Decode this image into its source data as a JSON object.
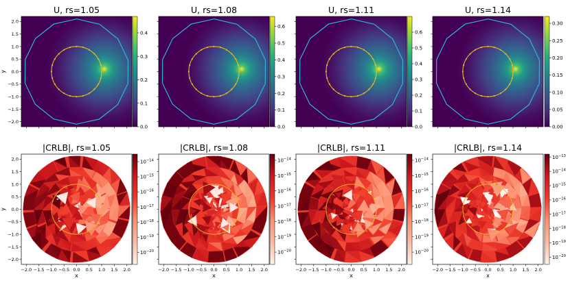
{
  "chart_data": [
    {
      "type": "heatmap",
      "title": "U, rs=1.05",
      "ylabel": "y",
      "xlabel": "",
      "rs": 1.05,
      "colormap": "viridis",
      "xlim": [
        -2.2,
        2.2
      ],
      "ylim": [
        -2.2,
        2.2
      ],
      "clim": [
        0,
        0.47
      ],
      "xticks": [],
      "yticks": [
        "2.0",
        "1.5",
        "1.0",
        "0.5",
        "0.0",
        "−0.5",
        "−1.0",
        "−1.5",
        "−2.0"
      ],
      "colorbar_ticks": [
        "0.4",
        "0.3",
        "0.2",
        "0.1",
        "0.0"
      ],
      "colorbar_tick_values": [
        0.4,
        0.3,
        0.2,
        0.1,
        0.0
      ],
      "peak": {
        "x": 1.1,
        "y": 0.1
      },
      "inner_circle_radius": 1.0,
      "outer_polygon_radius": 2.1
    },
    {
      "type": "heatmap",
      "title": "U, rs=1.08",
      "ylabel": "",
      "xlabel": "",
      "rs": 1.08,
      "colormap": "viridis",
      "xlim": [
        -2.2,
        2.2
      ],
      "ylim": [
        -2.2,
        2.2
      ],
      "clim": [
        0,
        0.66
      ],
      "xticks": [],
      "yticks": [],
      "colorbar_ticks": [
        "0.6",
        "0.5",
        "0.4",
        "0.3",
        "0.2",
        "0.1",
        "0.0"
      ],
      "colorbar_tick_values": [
        0.6,
        0.5,
        0.4,
        0.3,
        0.2,
        0.1,
        0.0
      ],
      "peak": {
        "x": 1.1,
        "y": 0.1
      },
      "inner_circle_radius": 1.0,
      "outer_polygon_radius": 2.1
    },
    {
      "type": "heatmap",
      "title": "U, rs=1.11",
      "ylabel": "",
      "xlabel": "",
      "rs": 1.11,
      "colormap": "viridis",
      "xlim": [
        -2.2,
        2.2
      ],
      "ylim": [
        -2.2,
        2.2
      ],
      "clim": [
        0,
        0.7
      ],
      "xticks": [],
      "yticks": [],
      "colorbar_ticks": [
        "0.6",
        "0.5",
        "0.4",
        "0.3",
        "0.2",
        "0.1",
        "0.0"
      ],
      "colorbar_tick_values": [
        0.6,
        0.5,
        0.4,
        0.3,
        0.2,
        0.1,
        0.0
      ],
      "peak": {
        "x": 1.1,
        "y": 0.1
      },
      "inner_circle_radius": 1.0,
      "outer_polygon_radius": 2.1
    },
    {
      "type": "heatmap",
      "title": "U, rs=1.14",
      "ylabel": "",
      "xlabel": "",
      "rs": 1.14,
      "colormap": "viridis",
      "xlim": [
        -2.2,
        2.2
      ],
      "ylim": [
        -2.2,
        2.2
      ],
      "clim": [
        0,
        0.32
      ],
      "xticks": [],
      "yticks": [],
      "colorbar_ticks": [
        "0.30",
        "0.25",
        "0.20",
        "0.15",
        "0.10",
        "0.05",
        "0.00"
      ],
      "colorbar_tick_values": [
        0.3,
        0.25,
        0.2,
        0.15,
        0.1,
        0.05,
        0.0
      ],
      "peak": {
        "x": 1.1,
        "y": 0.1
      },
      "inner_circle_radius": 1.0,
      "outer_polygon_radius": 2.1
    },
    {
      "type": "heatmap",
      "title": "|CRLB|, rs=1.05",
      "ylabel": "y",
      "xlabel": "x",
      "rs": 1.05,
      "colormap": "reds",
      "scale": "log",
      "xlim": [
        -2.2,
        2.2
      ],
      "ylim": [
        -2.2,
        2.2
      ],
      "xticks": [
        "−2.0",
        "−1.5",
        "−1.0",
        "−0.5",
        "0.0",
        "0.5",
        "1.0",
        "1.5",
        "2.0"
      ],
      "yticks": [
        "2.0",
        "1.5",
        "1.0",
        "0.5",
        "0.0",
        "−0.5",
        "−1.0",
        "−1.5",
        "−2.0"
      ],
      "colorbar_ticks": [
        {
          "base": "10",
          "exp": "−14"
        },
        {
          "base": "10",
          "exp": "−15"
        },
        {
          "base": "10",
          "exp": "−16"
        },
        {
          "base": "10",
          "exp": "−17"
        },
        {
          "base": "10",
          "exp": "−18"
        },
        {
          "base": "10",
          "exp": "−19"
        },
        {
          "base": "10",
          "exp": "−20"
        }
      ],
      "colorbar_exponents": [
        -14,
        -15,
        -16,
        -17,
        -18,
        -19,
        -20
      ],
      "clim_exp": [
        -20.8,
        -13.5
      ],
      "seed": 11
    },
    {
      "type": "heatmap",
      "title": "|CRLB|, rs=1.08",
      "ylabel": "",
      "xlabel": "x",
      "rs": 1.08,
      "colormap": "reds",
      "scale": "log",
      "xlim": [
        -2.2,
        2.2
      ],
      "ylim": [
        -2.2,
        2.2
      ],
      "xticks": [
        "−2.0",
        "−1.5",
        "−1.0",
        "−0.5",
        "0.0",
        "0.5",
        "1.0",
        "1.5",
        "2.0"
      ],
      "yticks": [],
      "colorbar_ticks": [
        {
          "base": "10",
          "exp": "−14"
        },
        {
          "base": "10",
          "exp": "−15"
        },
        {
          "base": "10",
          "exp": "−16"
        },
        {
          "base": "10",
          "exp": "−17"
        },
        {
          "base": "10",
          "exp": "−18"
        },
        {
          "base": "10",
          "exp": "−19"
        },
        {
          "base": "10",
          "exp": "−20"
        }
      ],
      "colorbar_exponents": [
        -14,
        -15,
        -16,
        -17,
        -18,
        -19,
        -20
      ],
      "clim_exp": [
        -20.8,
        -13.6
      ],
      "seed": 23
    },
    {
      "type": "heatmap",
      "title": "|CRLB|, rs=1.11",
      "ylabel": "",
      "xlabel": "x",
      "rs": 1.11,
      "colormap": "reds",
      "scale": "log",
      "xlim": [
        -2.2,
        2.2
      ],
      "ylim": [
        -2.2,
        2.2
      ],
      "xticks": [
        "−2.0",
        "−1.5",
        "−1.0",
        "−0.5",
        "0.0",
        "0.5",
        "1.0",
        "1.5",
        "2.0"
      ],
      "yticks": [],
      "colorbar_ticks": [
        {
          "base": "10",
          "exp": "−14"
        },
        {
          "base": "10",
          "exp": "−15"
        },
        {
          "base": "10",
          "exp": "−16"
        },
        {
          "base": "10",
          "exp": "−17"
        },
        {
          "base": "10",
          "exp": "−18"
        },
        {
          "base": "10",
          "exp": "−19"
        },
        {
          "base": "10",
          "exp": "−20"
        }
      ],
      "colorbar_exponents": [
        -14,
        -15,
        -16,
        -17,
        -18,
        -19,
        -20
      ],
      "clim_exp": [
        -20.8,
        -13.6
      ],
      "seed": 37
    },
    {
      "type": "heatmap",
      "title": "|CRLB|, rs=1.14",
      "ylabel": "",
      "xlabel": "x",
      "rs": 1.14,
      "colormap": "reds",
      "scale": "log",
      "xlim": [
        -2.2,
        2.2
      ],
      "ylim": [
        -2.2,
        2.2
      ],
      "xticks": [
        "−2.0",
        "−1.5",
        "−1.0",
        "−0.5",
        "0.0",
        "0.5",
        "1.0",
        "1.5",
        "2.0"
      ],
      "yticks": [],
      "colorbar_ticks": [
        {
          "base": "10",
          "exp": "−13"
        },
        {
          "base": "10",
          "exp": "−14"
        },
        {
          "base": "10",
          "exp": "−15"
        },
        {
          "base": "10",
          "exp": "−16"
        },
        {
          "base": "10",
          "exp": "−17"
        },
        {
          "base": "10",
          "exp": "−18"
        },
        {
          "base": "10",
          "exp": "−19"
        },
        {
          "base": "10",
          "exp": "−20"
        }
      ],
      "colorbar_exponents": [
        -13,
        -14,
        -15,
        -16,
        -17,
        -18,
        -19,
        -20
      ],
      "clim_exp": [
        -20.5,
        -12.8
      ],
      "seed": 51
    }
  ],
  "colors": {
    "inner_circle": "#e6b81e",
    "outer_polygon": "#2ab7d6",
    "axis": "#000000",
    "background": "#ffffff"
  },
  "yticks_values": [
    2.0,
    1.5,
    1.0,
    0.5,
    0.0,
    -0.5,
    -1.0,
    -1.5,
    -2.0
  ],
  "xticks_values": [
    -2.0,
    -1.5,
    -1.0,
    -0.5,
    0.0,
    0.5,
    1.0,
    1.5,
    2.0
  ]
}
